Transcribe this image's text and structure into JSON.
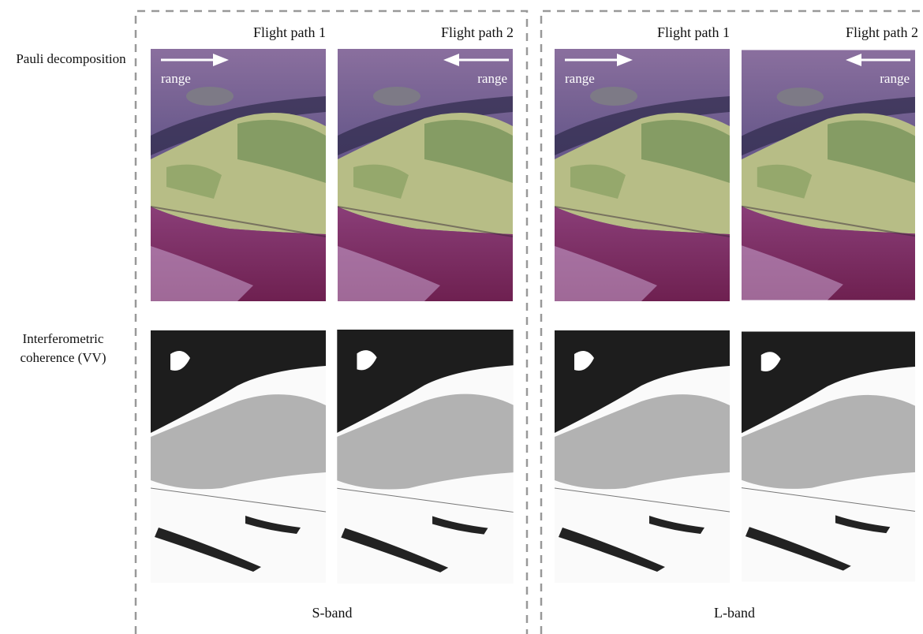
{
  "columns": [
    {
      "band": "S-band",
      "flight_paths": [
        "Flight path 1",
        "Flight path 2"
      ]
    },
    {
      "band": "L-band",
      "flight_paths": [
        "Flight path 1",
        "Flight path 2"
      ]
    }
  ],
  "rows": [
    "Pauli decomposition",
    "Interferometric coherence (VV)"
  ],
  "range_labels": [
    "range",
    "range",
    "range",
    "range"
  ]
}
